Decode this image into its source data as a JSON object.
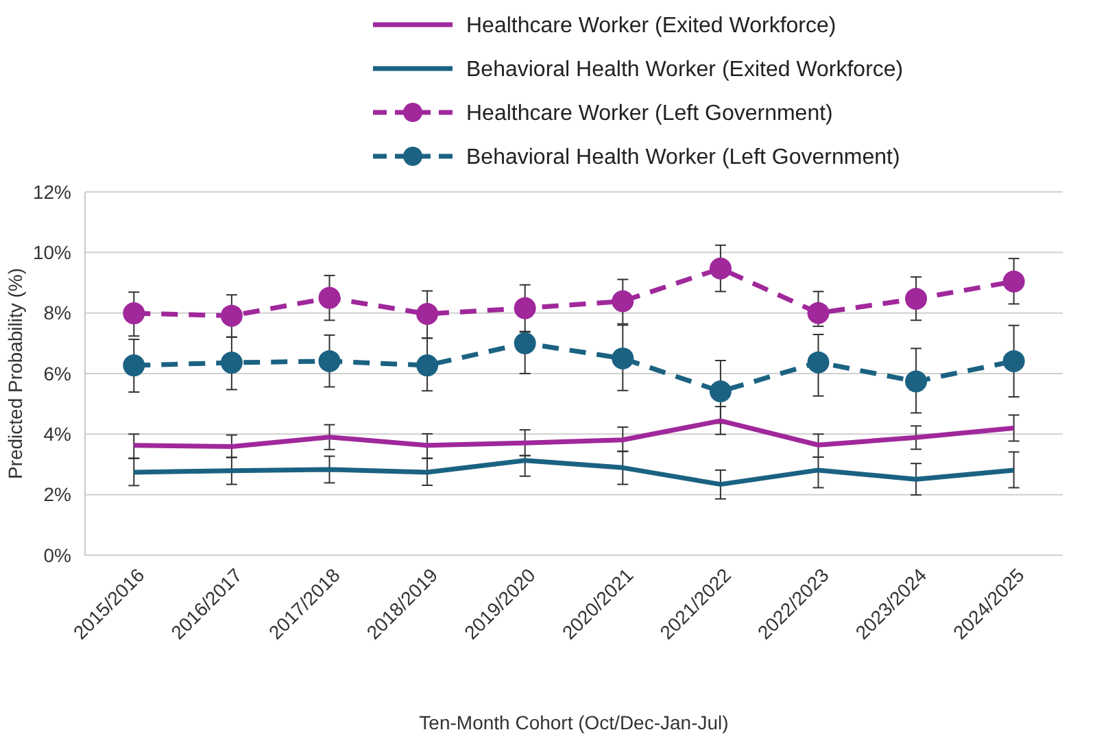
{
  "chart_data": {
    "type": "line",
    "xlabel": "Ten-Month Cohort (Oct/Dec-Jan-Jul)",
    "ylabel": "Predicted Probability (%)",
    "categories": [
      "2015/2016",
      "2016/2017",
      "2017/2018",
      "2018/2019",
      "2019/2020",
      "2020/2021",
      "2021/2022",
      "2022/2023",
      "2023/2024",
      "2024/2025"
    ],
    "ylim": [
      0,
      12
    ],
    "yticks": [
      {
        "value": 0,
        "label": "0%"
      },
      {
        "value": 2,
        "label": "2%"
      },
      {
        "value": 4,
        "label": "4%"
      },
      {
        "value": 6,
        "label": "6%"
      },
      {
        "value": 8,
        "label": "8%"
      },
      {
        "value": 10,
        "label": "10%"
      },
      {
        "value": 12,
        "label": "12%"
      }
    ],
    "grid": "y",
    "legend": "top",
    "series": [
      {
        "name": "Healthcare Worker (Exited Workforce)",
        "color": "#a0289b",
        "marker": "none",
        "line_style": "solid",
        "values": [
          3.63,
          3.59,
          3.9,
          3.63,
          3.71,
          3.81,
          4.44,
          3.64,
          3.89,
          4.2
        ],
        "errors": [
          [
            3.2,
            4.0
          ],
          [
            3.23,
            3.97
          ],
          [
            3.49,
            4.31
          ],
          [
            3.2,
            4.01
          ],
          [
            3.29,
            4.14
          ],
          [
            3.43,
            4.23
          ],
          [
            3.99,
            4.91
          ],
          [
            3.24,
            4.0
          ],
          [
            3.5,
            4.27
          ],
          [
            3.77,
            4.63
          ]
        ]
      },
      {
        "name": "Behavioral Health Worker (Exited Workforce)",
        "color": "#1b6282",
        "marker": "none",
        "line_style": "solid",
        "values": [
          2.74,
          2.79,
          2.83,
          2.74,
          3.13,
          2.89,
          2.34,
          2.81,
          2.51,
          2.81
        ],
        "errors": [
          [
            2.3,
            3.2
          ],
          [
            2.34,
            3.23
          ],
          [
            2.39,
            3.27
          ],
          [
            2.31,
            3.2
          ],
          [
            2.61,
            3.29
          ],
          [
            2.34,
            3.43
          ],
          [
            1.86,
            2.81
          ],
          [
            2.23,
            3.24
          ],
          [
            1.99,
            3.03
          ],
          [
            2.23,
            3.41
          ]
        ]
      },
      {
        "name": "Healthcare Worker (Left Government)",
        "color": "#a0289b",
        "marker": "circle",
        "line_style": "dashed",
        "values": [
          7.99,
          7.91,
          8.5,
          7.97,
          8.16,
          8.39,
          9.47,
          8.0,
          8.47,
          9.04
        ],
        "errors": [
          [
            7.24,
            8.69
          ],
          [
            7.21,
            8.6
          ],
          [
            7.76,
            9.24
          ],
          [
            7.17,
            8.73
          ],
          [
            7.39,
            8.93
          ],
          [
            7.64,
            9.11
          ],
          [
            8.71,
            10.24
          ],
          [
            7.56,
            8.71
          ],
          [
            7.76,
            9.19
          ],
          [
            8.3,
            9.8
          ]
        ]
      },
      {
        "name": "Behavioral Health Worker (Left Government)",
        "color": "#1b6282",
        "marker": "circle",
        "line_style": "dashed",
        "values": [
          6.27,
          6.36,
          6.41,
          6.27,
          7.0,
          6.5,
          5.41,
          6.37,
          5.74,
          6.41
        ],
        "errors": [
          [
            5.39,
            7.13
          ],
          [
            5.47,
            7.2
          ],
          [
            5.56,
            7.27
          ],
          [
            5.43,
            7.17
          ],
          [
            6.0,
            7.37
          ],
          [
            5.44,
            7.6
          ],
          [
            4.36,
            6.43
          ],
          [
            5.26,
            7.29
          ],
          [
            4.7,
            6.83
          ],
          [
            5.23,
            7.59
          ]
        ]
      }
    ]
  }
}
